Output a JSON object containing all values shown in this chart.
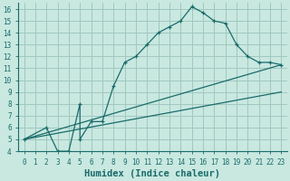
{
  "title": "",
  "xlabel": "Humidex (Indice chaleur)",
  "background_color": "#c8e8e0",
  "grid_color": "#a0c8c0",
  "line_color": "#1a6b6b",
  "xlim": [
    -0.5,
    23.5
  ],
  "ylim": [
    4,
    16.5
  ],
  "xticks": [
    0,
    1,
    2,
    3,
    4,
    5,
    6,
    7,
    8,
    9,
    10,
    11,
    12,
    13,
    14,
    15,
    16,
    17,
    18,
    19,
    20,
    21,
    22,
    23
  ],
  "yticks": [
    4,
    5,
    6,
    7,
    8,
    9,
    10,
    11,
    12,
    13,
    14,
    15,
    16
  ],
  "line1_x": [
    0,
    2,
    3,
    4,
    5,
    5,
    6,
    7,
    8,
    9,
    10,
    11,
    12,
    13,
    14,
    15,
    16,
    17,
    18,
    19,
    20,
    21,
    22,
    23
  ],
  "line1_y": [
    5,
    6,
    4,
    4,
    8,
    5,
    6.5,
    6.5,
    9.5,
    11.5,
    12,
    13,
    14,
    14.5,
    15,
    16.2,
    15.7,
    15.0,
    14.8,
    13,
    12,
    11.5,
    11.5,
    11.3
  ],
  "line2_x": [
    0,
    23
  ],
  "line2_y": [
    5,
    11.3
  ],
  "line3_x": [
    0,
    23
  ],
  "line3_y": [
    5,
    9.0
  ],
  "tick_fontsize": 5.5,
  "xlabel_fontsize": 7.5
}
